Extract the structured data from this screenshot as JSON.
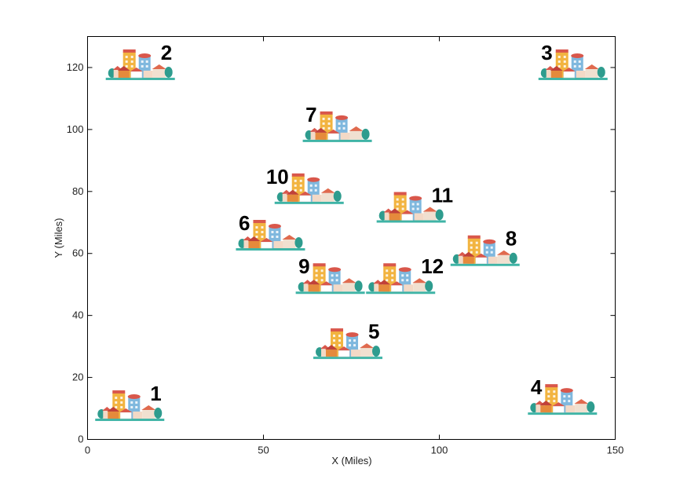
{
  "chart_data": {
    "type": "scatter",
    "title": "",
    "xlabel": "X (Miles)",
    "ylabel": "Y (Miles)",
    "xlim": [
      0,
      150
    ],
    "ylim": [
      0,
      130
    ],
    "xticks": [
      0,
      50,
      100,
      150
    ],
    "yticks": [
      0,
      20,
      40,
      60,
      80,
      100,
      120
    ],
    "grid": false,
    "marker": "city-icon",
    "points": [
      {
        "label": "1",
        "x": 12,
        "y": 10
      },
      {
        "label": "2",
        "x": 15,
        "y": 120
      },
      {
        "label": "3",
        "x": 138,
        "y": 120
      },
      {
        "label": "4",
        "x": 135,
        "y": 12
      },
      {
        "label": "5",
        "x": 74,
        "y": 30
      },
      {
        "label": "6",
        "x": 52,
        "y": 65
      },
      {
        "label": "7",
        "x": 71,
        "y": 100
      },
      {
        "label": "8",
        "x": 113,
        "y": 60
      },
      {
        "label": "9",
        "x": 69,
        "y": 51
      },
      {
        "label": "10",
        "x": 63,
        "y": 80
      },
      {
        "label": "11",
        "x": 92,
        "y": 74
      },
      {
        "label": "12",
        "x": 89,
        "y": 51
      }
    ]
  }
}
